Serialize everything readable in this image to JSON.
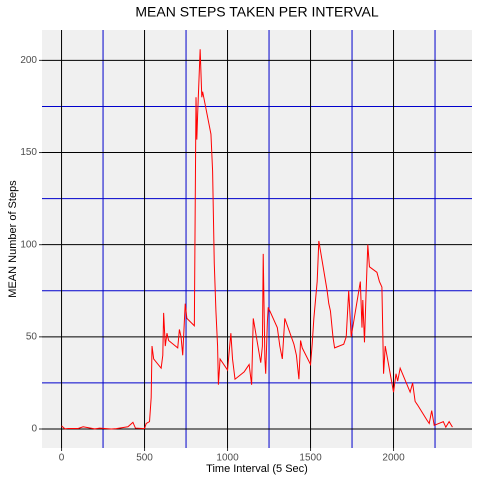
{
  "chart_data": {
    "type": "line",
    "title": "MEAN STEPS TAKEN PER INTERVAL",
    "x_label": "Time Interval (5 Sec)",
    "y_label": "MEAN Number of Steps",
    "x": [
      0,
      20,
      40,
      100,
      130,
      200,
      230,
      300,
      330,
      400,
      430,
      445,
      500,
      510,
      520,
      530,
      540,
      545,
      555,
      600,
      610,
      615,
      625,
      635,
      645,
      700,
      710,
      720,
      730,
      745,
      755,
      800,
      810,
      815,
      820,
      835,
      845,
      850,
      900,
      910,
      920,
      930,
      940,
      945,
      955,
      1000,
      1010,
      1020,
      1030,
      1045,
      1100,
      1115,
      1130,
      1145,
      1155,
      1200,
      1210,
      1215,
      1225,
      1230,
      1240,
      1245,
      1300,
      1315,
      1330,
      1345,
      1400,
      1415,
      1430,
      1440,
      1450,
      1500,
      1510,
      1520,
      1540,
      1550,
      1600,
      1610,
      1620,
      1635,
      1645,
      1700,
      1715,
      1730,
      1745,
      1800,
      1810,
      1815,
      1825,
      1835,
      1845,
      1855,
      1900,
      1915,
      1930,
      1940,
      1950,
      2000,
      2015,
      2025,
      2040,
      2100,
      2115,
      2130,
      2145,
      2200,
      2215,
      2230,
      2245,
      2300,
      2315,
      2335,
      2355
    ],
    "values": [
      1.7,
      0.1,
      0.3,
      0.3,
      1.2,
      0.1,
      0.5,
      0,
      0.2,
      1.2,
      3.6,
      0.5,
      0.2,
      3,
      3.5,
      4,
      17,
      45,
      38,
      33,
      40,
      63,
      45,
      52,
      48,
      44,
      54,
      50,
      40,
      68,
      60,
      56,
      180,
      157,
      171,
      206,
      180,
      183,
      160,
      140,
      90,
      64,
      45,
      24,
      38,
      32,
      42,
      52,
      38,
      27,
      31,
      33,
      35,
      24,
      60,
      36,
      45,
      95,
      38,
      30,
      58,
      66,
      55,
      45,
      38,
      60,
      46,
      40,
      27,
      48,
      44,
      35,
      46,
      60,
      80,
      102,
      75,
      68,
      64,
      50,
      44,
      46,
      50,
      75,
      50,
      80,
      55,
      70,
      47,
      75,
      100,
      88,
      85,
      80,
      77,
      30,
      45,
      20,
      30,
      26,
      33,
      20,
      25,
      15,
      13,
      5,
      3,
      10,
      2,
      4,
      1,
      4,
      1
    ],
    "color": "#ff0000",
    "xlim": [
      -117.75,
      2472.75
    ],
    "ylim": [
      -10.31,
      216.48
    ],
    "xticks": [
      0,
      500,
      1000,
      1500,
      2000
    ],
    "yticks": [
      0,
      50,
      100,
      150,
      200
    ],
    "x_minor_grid": [
      250,
      750,
      1250,
      1750,
      2250
    ],
    "y_minor_grid": [
      25,
      75,
      125,
      175
    ],
    "grid_color": "#000000",
    "minor_grid_color": "#0000cc"
  }
}
